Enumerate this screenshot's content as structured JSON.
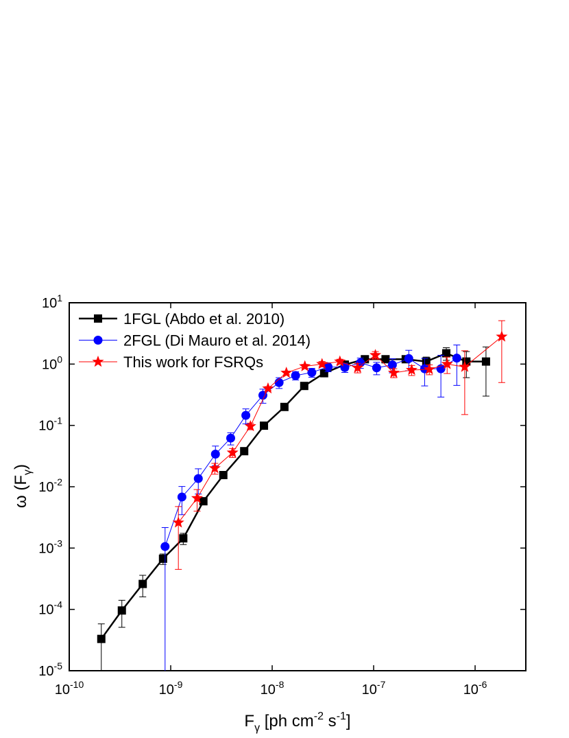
{
  "chart_data": {
    "type": "scatter",
    "xlabel": [
      "F",
      "γ",
      " [ph cm",
      "-2",
      " s",
      "-1",
      "]"
    ],
    "ylabel": [
      "ω (F",
      "γ",
      ")"
    ],
    "xscale": "log",
    "yscale": "log",
    "xlim": [
      1e-10,
      3.16e-06
    ],
    "ylim": [
      1e-05,
      10
    ],
    "xticks": [
      {
        "value": 1e-10,
        "label": "10",
        "sup": "-10"
      },
      {
        "value": 1e-09,
        "label": "10",
        "sup": "-9"
      },
      {
        "value": 1e-08,
        "label": "10",
        "sup": "-8"
      },
      {
        "value": 1e-07,
        "label": "10",
        "sup": "-7"
      },
      {
        "value": 1e-06,
        "label": "10",
        "sup": "-6"
      }
    ],
    "yticks": [
      {
        "value": 1e-05,
        "label": "10",
        "sup": "-5"
      },
      {
        "value": 0.0001,
        "label": "10",
        "sup": "-4"
      },
      {
        "value": 0.001,
        "label": "10",
        "sup": "-3"
      },
      {
        "value": 0.01,
        "label": "10",
        "sup": "-2"
      },
      {
        "value": 0.1,
        "label": "10",
        "sup": "-1"
      },
      {
        "value": 1,
        "label": "10",
        "sup": "0"
      },
      {
        "value": 10,
        "label": "10",
        "sup": "1"
      }
    ],
    "legend": "upper left",
    "series": [
      {
        "name": "1FGL (Abdo et al. 2010)",
        "color": "#000000",
        "marker": "square",
        "line_width": 2.5,
        "x": [
          2.07e-10,
          3.3e-10,
          5.3e-10,
          8.4e-10,
          1.33e-09,
          2.1e-09,
          3.3e-09,
          5.3e-09,
          8.3e-09,
          1.32e-08,
          2.07e-08,
          3.25e-08,
          5.2e-08,
          8.2e-08,
          1.31e-07,
          2.07e-07,
          3.3e-07,
          5.2e-07,
          8.2e-07,
          1.28e-06
        ],
        "values": [
          3.3e-05,
          9.6e-05,
          0.00026,
          0.00067,
          0.00144,
          0.0058,
          0.0155,
          0.038,
          0.099,
          0.2,
          0.44,
          0.71,
          0.98,
          1.2,
          1.2,
          1.2,
          1.1,
          1.5,
          1.1,
          1.1
        ],
        "errors": [
          2.5e-05,
          4.5e-05,
          0.0001,
          0.00013,
          0.0003,
          0.0005,
          0.001,
          0.002,
          0.004,
          0.008,
          0.02,
          0.04,
          0.05,
          0.06,
          0.08,
          0.15,
          0.2,
          0.35,
          0.5,
          0.8
        ]
      },
      {
        "name": "2FGL (Di Mauro et al. 2014)",
        "color": "#0000ff",
        "marker": "circle",
        "line_width": 1,
        "x": [
          8.8e-10,
          1.29e-09,
          1.87e-09,
          2.76e-09,
          3.9e-09,
          5.5e-09,
          8.1e-09,
          1.17e-08,
          1.7e-08,
          2.46e-08,
          3.56e-08,
          5.2e-08,
          7.4e-08,
          1.07e-07,
          1.53e-07,
          2.22e-07,
          3.18e-07,
          4.6e-07,
          6.6e-07
        ],
        "values": [
          0.00106,
          0.0068,
          0.0136,
          0.034,
          0.062,
          0.146,
          0.31,
          0.5,
          0.65,
          0.73,
          0.9,
          0.88,
          1.05,
          0.87,
          0.97,
          1.23,
          0.84,
          0.84,
          1.25
        ],
        "errors": [
          0.0011,
          0.0033,
          0.006,
          0.012,
          0.014,
          0.04,
          0.08,
          0.1,
          0.1,
          0.12,
          0.15,
          0.15,
          0.2,
          0.2,
          0.25,
          0.45,
          0.4,
          0.55,
          0.8
        ]
      },
      {
        "name": "This work for FSRQs",
        "color": "#ff0000",
        "marker": "star",
        "line_width": 1,
        "x": [
          1.19e-09,
          1.82e-09,
          2.72e-09,
          4.07e-09,
          6.1e-09,
          9.1e-09,
          1.38e-08,
          2.1e-08,
          3.1e-08,
          4.65e-08,
          6.95e-08,
          1.04e-07,
          1.58e-07,
          2.37e-07,
          3.54e-07,
          5.3e-07,
          7.9e-07,
          1.83e-06
        ],
        "values": [
          0.0026,
          0.0065,
          0.02,
          0.036,
          0.097,
          0.4,
          0.72,
          0.92,
          1.0,
          1.1,
          0.87,
          1.4,
          0.72,
          0.8,
          0.82,
          1.0,
          0.9,
          2.8
        ],
        "errors": [
          0.00215,
          0.0025,
          0.004,
          0.006,
          0.012,
          0.03,
          0.05,
          0.07,
          0.1,
          0.1,
          0.15,
          0.2,
          0.12,
          0.15,
          0.15,
          0.3,
          0.75,
          2.3
        ]
      }
    ]
  }
}
